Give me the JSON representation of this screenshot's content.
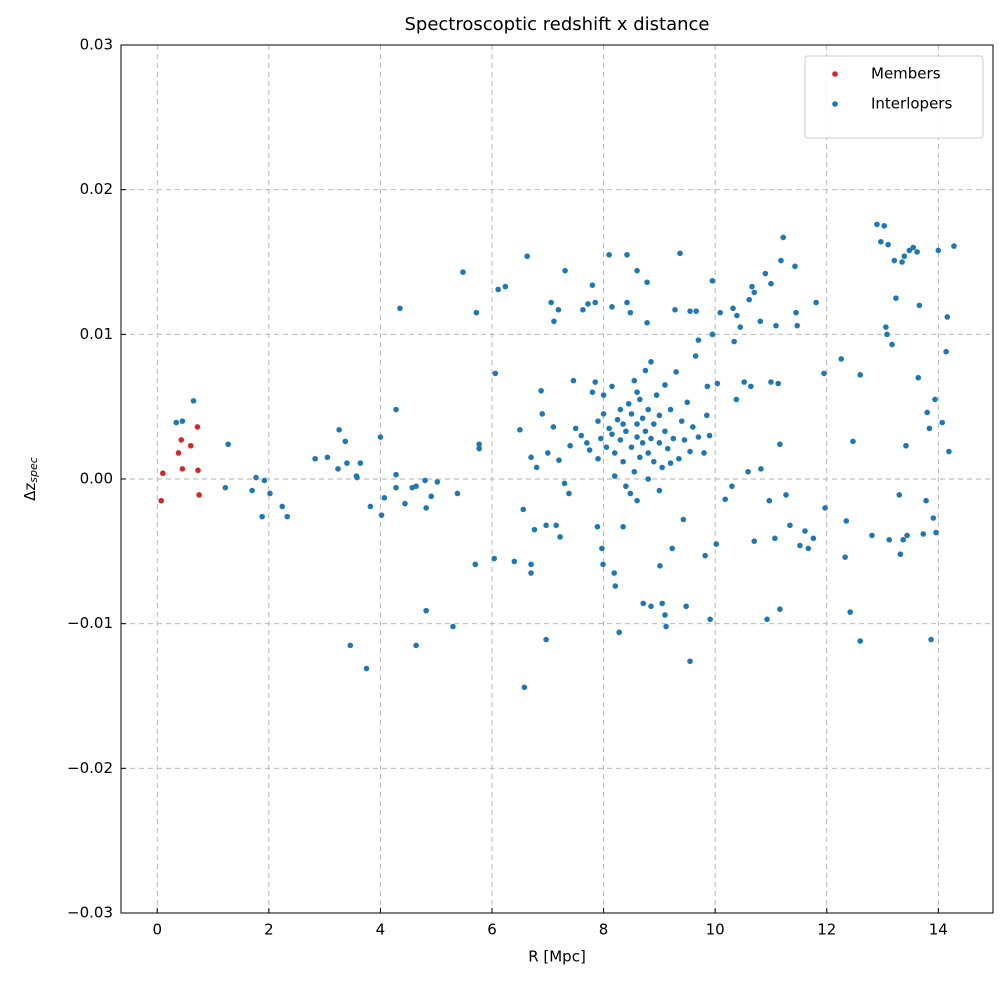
{
  "chart_data": {
    "type": "scatter",
    "title": "Spectroscoptic redshift x distance",
    "xlabel": "R [Mpc]",
    "ylabel": "Δz",
    "ylabel_subscript": "spec",
    "xlim": [
      -0.65,
      14.98
    ],
    "ylim": [
      -0.03,
      0.03
    ],
    "xticks": [
      0,
      2,
      4,
      6,
      8,
      10,
      12,
      14
    ],
    "yticks": [
      {
        "value": -0.03,
        "label": "−0.03"
      },
      {
        "value": -0.02,
        "label": "−0.02"
      },
      {
        "value": -0.01,
        "label": "−0.01"
      },
      {
        "value": 0,
        "label": "0.00"
      },
      0.01,
      0.02,
      0.03
    ],
    "grid": true,
    "legend": "upper right",
    "series": [
      {
        "name": "Members",
        "color": "#d62728",
        "x": [
          0.07,
          0.1,
          0.38,
          0.43,
          0.45,
          0.6,
          0.72,
          0.73,
          0.75
        ],
        "values": [
          -0.0015,
          0.0004,
          0.0018,
          0.0027,
          0.0007,
          0.0023,
          0.0036,
          0.0006,
          -0.0011
        ]
      },
      {
        "name": "Interlopers",
        "color": "#1f77b4",
        "x": [
          0.34,
          0.45,
          0.65,
          1.27,
          1.22,
          1.7,
          1.77,
          1.92,
          1.88,
          2.02,
          2.24,
          2.33,
          2.83,
          3.05,
          3.26,
          3.24,
          3.37,
          3.4,
          3.57,
          3.58,
          3.64,
          3.82,
          3.46,
          3.75,
          4.0,
          4.02,
          4.07,
          4.28,
          4.28,
          4.28,
          4.35,
          4.44,
          4.57,
          4.64,
          4.8,
          4.82,
          4.91,
          5.02,
          4.82,
          4.64,
          5.3,
          5.38,
          5.48,
          5.72,
          5.77,
          5.77,
          5.7,
          6.06,
          6.04,
          6.11,
          6.24,
          6.4,
          6.5,
          6.56,
          6.58,
          6.63,
          6.7,
          6.7,
          6.76,
          6.88,
          6.97,
          6.97,
          7.06,
          7.11,
          7.15,
          7.19,
          7.22,
          7.31,
          7.38,
          7.46,
          7.63,
          7.72,
          7.8,
          7.85,
          7.89,
          7.97,
          7.99,
          8.1,
          8.15,
          8.19,
          8.21,
          8.28,
          8.35,
          8.42,
          8.42,
          8.48,
          8.48,
          8.6,
          8.71,
          8.78,
          8.78,
          8.85,
          9.01,
          9.05,
          9.1,
          9.12,
          9.23,
          9.28,
          9.37,
          9.43,
          9.48,
          9.55,
          9.55,
          9.66,
          9.7,
          9.82,
          9.86,
          9.91,
          9.95,
          9.95,
          10.02,
          10.04,
          10.09,
          10.18,
          10.3,
          10.32,
          10.34,
          10.38,
          10.39,
          10.45,
          10.52,
          10.59,
          10.61,
          10.64,
          10.66,
          10.7,
          10.7,
          10.81,
          10.82,
          10.9,
          10.93,
          10.97,
          11.0,
          11.0,
          11.07,
          11.09,
          11.13,
          11.16,
          11.22,
          11.18,
          11.16,
          11.27,
          11.34,
          11.43,
          11.45,
          11.47,
          11.52,
          11.61,
          11.67,
          11.76,
          11.81,
          11.97,
          11.95,
          12.26,
          12.33,
          12.35,
          12.42,
          12.47,
          12.6,
          12.6,
          12.81,
          12.9,
          12.97,
          13.03,
          13.06,
          13.08,
          13.1,
          13.12,
          13.17,
          13.21,
          13.24,
          13.3,
          13.32,
          13.35,
          13.37,
          13.39,
          13.42,
          13.44,
          13.48,
          13.55,
          13.62,
          13.64,
          13.66,
          13.73,
          13.78,
          13.8,
          13.84,
          13.87,
          13.91,
          13.94,
          13.96,
          14.0,
          14.07,
          14.14,
          14.16,
          14.19,
          14.28,
          7.5,
          7.6,
          7.7,
          7.75,
          7.8,
          7.85,
          7.9,
          7.95,
          8.0,
          8.05,
          8.1,
          8.15,
          8.2,
          8.25,
          8.3,
          8.3,
          8.35,
          8.4,
          8.45,
          8.5,
          8.5,
          8.55,
          8.55,
          8.6,
          8.6,
          8.65,
          8.65,
          8.7,
          8.7,
          8.75,
          8.75,
          8.8,
          8.8,
          8.85,
          8.85,
          8.9,
          8.9,
          8.95,
          9.0,
          9.0,
          9.05,
          9.1,
          9.1,
          9.15,
          9.2,
          9.25,
          9.3,
          9.35,
          9.4,
          9.45,
          9.5,
          9.55,
          9.6,
          9.65,
          9.7,
          9.8,
          9.85,
          9.9,
          7.0,
          7.1,
          7.2,
          7.3,
          7.4,
          6.9,
          6.8,
          6.7,
          8.4,
          8.6,
          8.2,
          9.0,
          8.8,
          7.9,
          8.0,
          9.2,
          8.35,
          8.6,
          8.15
        ],
        "values": [
          0.0039,
          0.004,
          0.0054,
          0.0024,
          -0.0006,
          -0.0008,
          0.0001,
          -0.0001,
          -0.0026,
          -0.001,
          -0.0019,
          -0.0026,
          0.0014,
          0.0015,
          0.0034,
          0.0007,
          0.0026,
          0.0011,
          0.0002,
          0.0001,
          0.0011,
          -0.0019,
          -0.0115,
          -0.0131,
          0.0029,
          -0.0025,
          -0.0013,
          0.0003,
          -0.0006,
          0.0048,
          0.0118,
          -0.0017,
          -0.0006,
          -0.0005,
          -0.0001,
          -0.002,
          -0.0012,
          -0.0002,
          -0.0091,
          -0.0115,
          -0.0102,
          -0.001,
          0.0143,
          0.0115,
          0.0021,
          0.0024,
          -0.0059,
          0.0073,
          -0.0055,
          0.0131,
          0.0133,
          -0.0057,
          0.0034,
          -0.0021,
          -0.0144,
          0.0154,
          -0.0059,
          -0.0065,
          -0.0035,
          0.0061,
          -0.0111,
          -0.0032,
          0.0122,
          0.0109,
          -0.0032,
          0.0117,
          -0.004,
          0.0144,
          -0.001,
          0.0068,
          0.0117,
          0.0121,
          0.0134,
          0.0122,
          -0.0033,
          -0.0048,
          -0.0059,
          0.0155,
          0.0119,
          -0.0065,
          -0.0074,
          -0.0106,
          -0.0033,
          0.0155,
          0.0122,
          0.0115,
          -0.001,
          0.0144,
          -0.0086,
          0.0136,
          0.0108,
          -0.0088,
          -0.006,
          -0.0086,
          -0.0094,
          -0.0102,
          -0.0048,
          0.0117,
          0.0156,
          -0.0028,
          -0.0088,
          -0.0126,
          0.0116,
          0.0116,
          0.0096,
          -0.0053,
          0.0064,
          -0.0097,
          0.0137,
          0.01,
          -0.0045,
          0.0066,
          0.0115,
          -0.0014,
          -0.0005,
          0.0118,
          0.0095,
          0.0055,
          0.0113,
          0.0105,
          0.0067,
          0.0005,
          0.0124,
          0.0064,
          0.0133,
          -0.0043,
          0.0129,
          0.0109,
          0.0007,
          0.0142,
          -0.0097,
          -0.0015,
          0.0135,
          0.0067,
          -0.0041,
          0.0106,
          0.0066,
          0.0024,
          0.0167,
          0.0151,
          -0.009,
          -0.0011,
          -0.0032,
          0.0147,
          0.0115,
          0.0106,
          -0.0046,
          -0.0036,
          -0.0048,
          -0.0041,
          0.0122,
          -0.002,
          0.0073,
          0.0083,
          -0.0054,
          -0.0029,
          -0.0092,
          0.0026,
          -0.0112,
          0.0072,
          -0.0039,
          0.0176,
          0.0164,
          0.0175,
          0.0105,
          0.01,
          0.0162,
          -0.0042,
          0.0093,
          0.0151,
          0.0125,
          -0.0011,
          -0.0052,
          0.015,
          -0.0042,
          0.0154,
          0.0023,
          -0.0039,
          0.0158,
          0.016,
          0.0157,
          0.007,
          0.012,
          -0.0038,
          -0.0015,
          0.0046,
          0.0035,
          -0.0111,
          -0.0027,
          0.0055,
          -0.0037,
          0.0158,
          0.0039,
          0.0088,
          0.0112,
          0.0019,
          0.0161,
          0.0035,
          0.003,
          0.0025,
          0.002,
          0.006,
          0.0067,
          0.004,
          0.0028,
          0.0045,
          0.0022,
          0.0035,
          0.0064,
          0.0018,
          0.0041,
          0.0027,
          0.0048,
          0.0012,
          0.0033,
          0.0052,
          0.0022,
          0.0045,
          0.0068,
          0.0005,
          0.0038,
          0.0029,
          0.0015,
          0.0055,
          0.0025,
          0.0042,
          0.0033,
          0.0075,
          0.0018,
          0.0048,
          0.0028,
          0.0081,
          0.0038,
          0.0012,
          0.0058,
          0.0025,
          0.0044,
          0.0008,
          0.0033,
          0.0065,
          0.0021,
          0.0048,
          0.0028,
          0.0074,
          0.0014,
          0.004,
          0.0027,
          0.0053,
          0.0019,
          0.0036,
          0.0085,
          0.0029,
          0.0018,
          0.0044,
          0.003,
          0.0018,
          0.0036,
          0.0013,
          -0.0003,
          0.0023,
          0.0045,
          0.0008,
          0.0015,
          -0.0005,
          -0.0015,
          0.0002,
          -0.0008,
          0.0,
          0.0014,
          0.0058,
          0.0011,
          0.0038,
          0.006,
          0.0031
        ]
      }
    ]
  }
}
